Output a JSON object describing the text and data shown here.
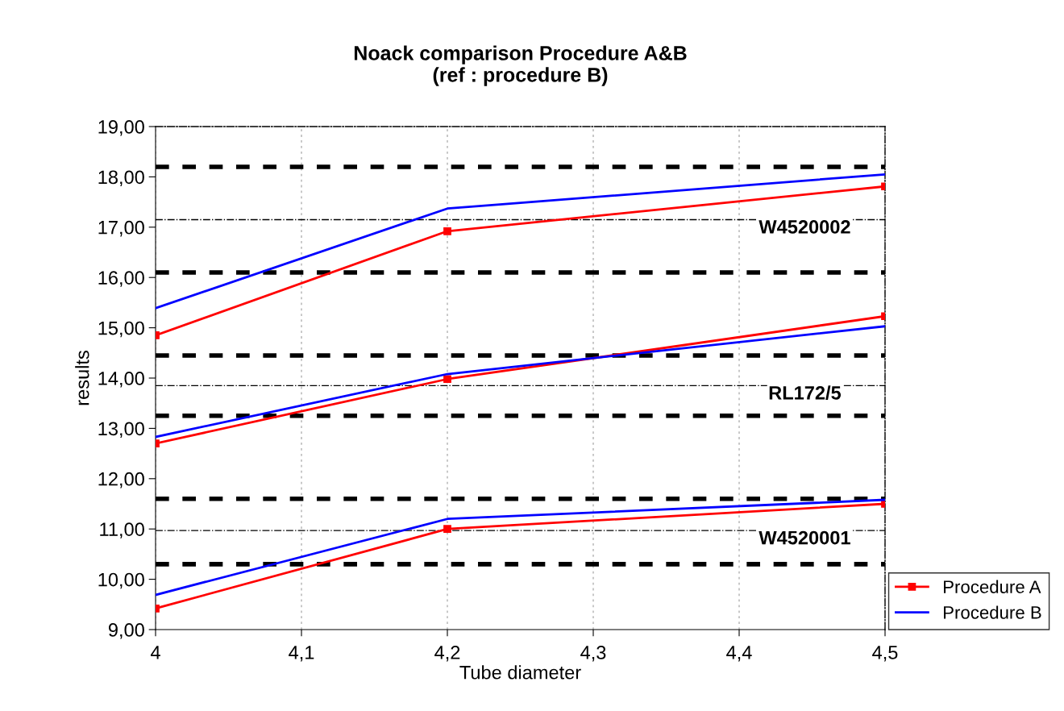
{
  "chart_data": {
    "type": "line",
    "title": "Noack comparison Procedure A&B\n(ref : procedure B)",
    "xlabel": "Tube diameter",
    "ylabel": "results",
    "xlim": [
      4,
      4.5
    ],
    "xticks": [
      {
        "value": 4,
        "label": "4"
      },
      {
        "value": 4.1,
        "label": "4,1"
      },
      {
        "value": 4.2,
        "label": "4,2"
      },
      {
        "value": 4.3,
        "label": "4,3"
      },
      {
        "value": 4.4,
        "label": "4,4"
      },
      {
        "value": 4.5,
        "label": "4,5"
      }
    ],
    "ylim": [
      9,
      19
    ],
    "yticks": [
      {
        "value": 9,
        "label": "9,00"
      },
      {
        "value": 10,
        "label": "10,00"
      },
      {
        "value": 11,
        "label": "11,00"
      },
      {
        "value": 12,
        "label": "12,00"
      },
      {
        "value": 13,
        "label": "13,00"
      },
      {
        "value": 14,
        "label": "14,00"
      },
      {
        "value": 15,
        "label": "15,00"
      },
      {
        "value": 16,
        "label": "16,00"
      },
      {
        "value": 17,
        "label": "17,00"
      },
      {
        "value": 18,
        "label": "18,00"
      },
      {
        "value": 19,
        "label": "19,00"
      }
    ],
    "grid": "x",
    "legend": "bottom right",
    "series": [
      {
        "name": "Procedure A",
        "color": "#ff0000",
        "marker": "square",
        "x": [
          4,
          4.2,
          4.5
        ],
        "values": [
          9.42,
          11.0,
          11.5
        ]
      },
      {
        "name": "Procedure B",
        "color": "#0000ff",
        "marker": "none",
        "x": [
          4,
          4.2,
          4.5
        ],
        "values": [
          9.69,
          11.2,
          11.58
        ]
      },
      {
        "color": "#ff0000",
        "marker": "square",
        "x": [
          4,
          4.2,
          4.5
        ],
        "values": [
          12.7,
          13.98,
          15.23
        ]
      },
      {
        "color": "#0000ff",
        "marker": "none",
        "x": [
          4,
          4.2,
          4.5
        ],
        "values": [
          12.83,
          14.08,
          15.03
        ]
      },
      {
        "color": "#ff0000",
        "marker": "square",
        "x": [
          4,
          4.2,
          4.5
        ],
        "values": [
          14.85,
          16.92,
          17.81
        ]
      },
      {
        "color": "#0000ff",
        "marker": "none",
        "x": [
          4,
          4.2,
          4.5
        ],
        "values": [
          15.39,
          17.37,
          18.05
        ]
      }
    ],
    "ref_lines": [
      {
        "axis": "y",
        "value": 18.2,
        "color": "#000000",
        "line_style": "dashed"
      },
      {
        "axis": "y",
        "value": 16.1,
        "color": "#000000",
        "line_style": "dashed"
      },
      {
        "axis": "y",
        "value": 14.45,
        "color": "#000000",
        "line_style": "dashed"
      },
      {
        "axis": "y",
        "value": 13.25,
        "color": "#000000",
        "line_style": "dashed"
      },
      {
        "axis": "y",
        "value": 11.6,
        "color": "#000000",
        "line_style": "dashed"
      },
      {
        "axis": "y",
        "value": 10.3,
        "color": "#000000",
        "line_style": "dashed"
      },
      {
        "axis": "y",
        "value": 17.15,
        "color": "#000000",
        "line_style": "dashdot",
        "label": "W4520002"
      },
      {
        "axis": "y",
        "value": 13.85,
        "color": "#000000",
        "line_style": "dashdot",
        "label": "RL172/5"
      },
      {
        "axis": "y",
        "value": 10.97,
        "color": "#000000",
        "line_style": "dashdot",
        "label": "W4520001"
      }
    ]
  }
}
